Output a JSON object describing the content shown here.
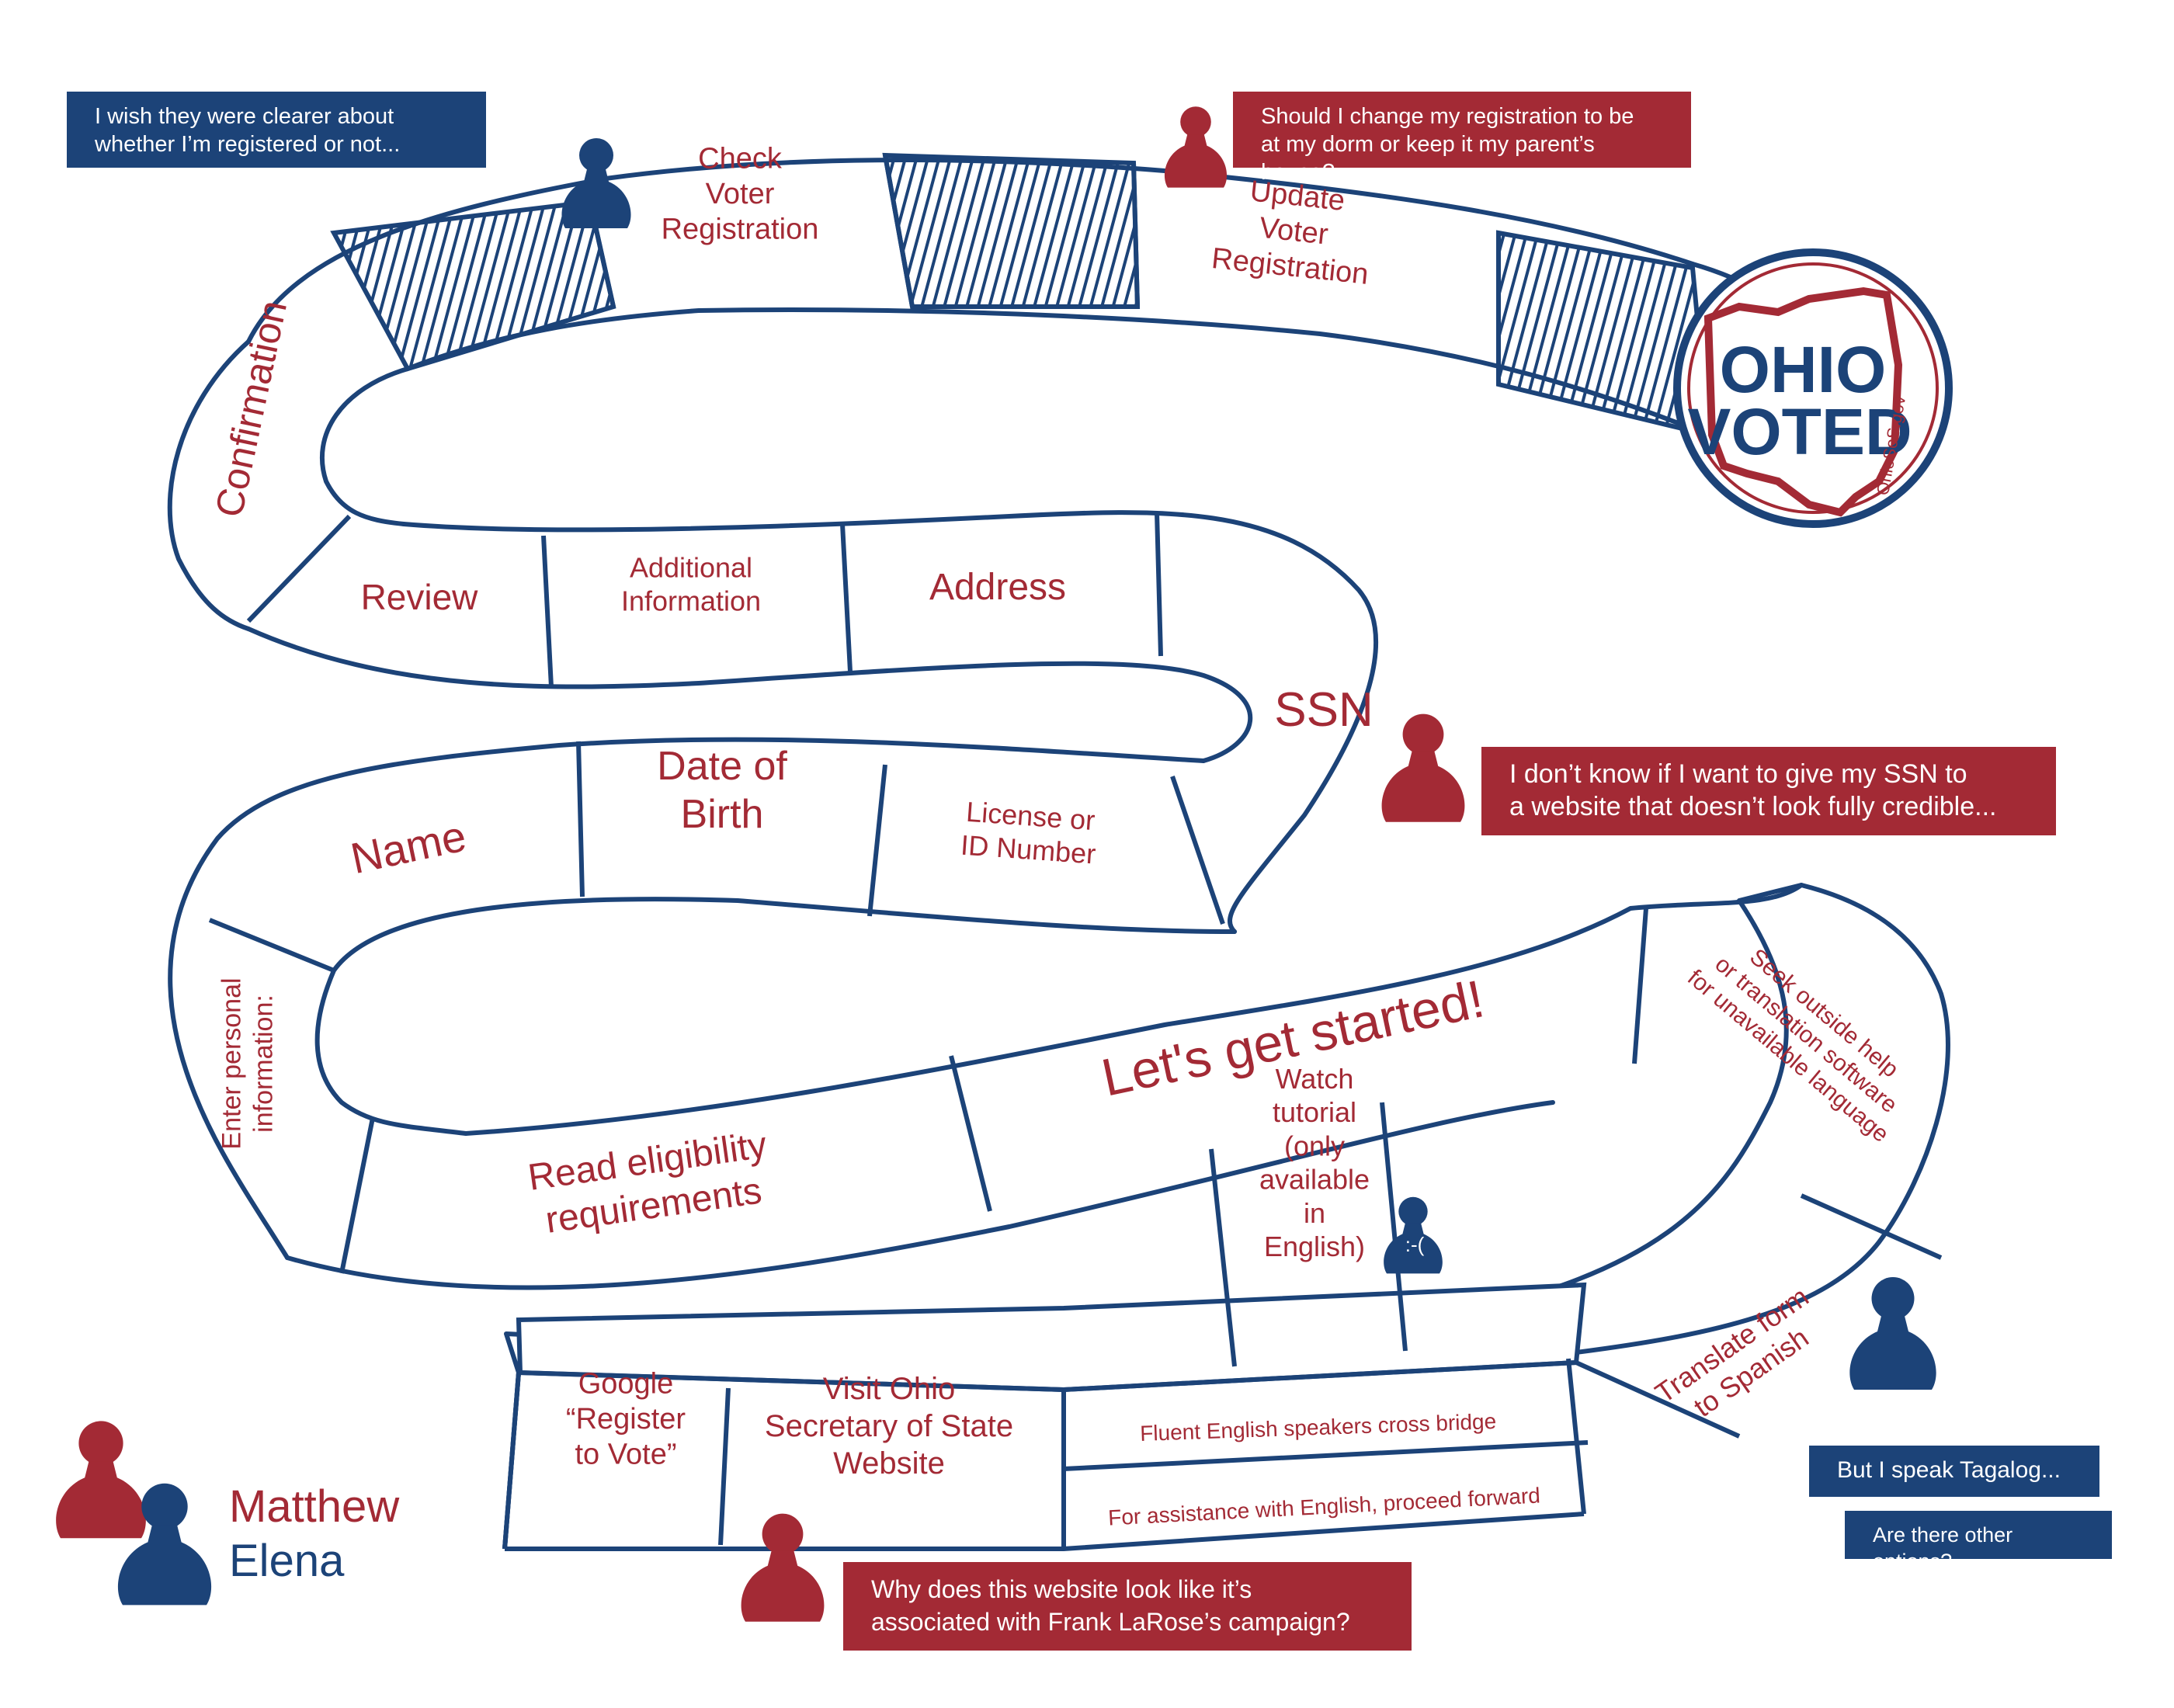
{
  "colors": {
    "blue": "#1c4378",
    "red": "#a32a35",
    "white": "#ffffff"
  },
  "spaces": {
    "google": "Google\n“Register\nto Vote”",
    "visit": "Visit Ohio\nSecretary of State\nWebsite",
    "bridge_top": "Fluent English speakers cross bridge",
    "bridge_bottom": "For assistance with English, proceed forward",
    "translate": "Translate form\nto Spanish",
    "seek": "Seek outside help\nor translation software\nfor unavailable language",
    "tutorial": "Watch\ntutorial\n(only\navailable\nin\nEnglish)",
    "started": "Let's get started!",
    "eligibility": "Read eligibility\nrequirements",
    "enter_info": "Enter personal\ninformation:",
    "name": "Name",
    "dob": "Date of\nBirth",
    "license": "License or\nID Number",
    "ssn": "SSN",
    "address": "Address",
    "additional": "Additional\nInformation",
    "review": "Review",
    "confirmation": "Confirmation",
    "check": "Check\nVoter\nRegistration",
    "update": "Update\nVoter\nRegistration"
  },
  "sticker": {
    "ohio": "OHIO",
    "voted": "VOTED",
    "site": "OhioSoS.gov"
  },
  "sad_face": ":-(",
  "bubbles": {
    "registered": "I wish they were clearer about\nwhether I’m registered or not...",
    "dorm": "Should I change my registration to be\nat my dorm or keep it my parent’s house?",
    "ssn": "I don’t know if I want to give my SSN to\na website that doesn’t look fully credible...",
    "tagalog": "But I speak Tagalog...",
    "other_options": "Are there other options?",
    "campaign": "Why does this website look like it’s\nassociated with Frank LaRose’s campaign?"
  },
  "legend": {
    "player1": "Matthew",
    "player2": "Elena"
  }
}
